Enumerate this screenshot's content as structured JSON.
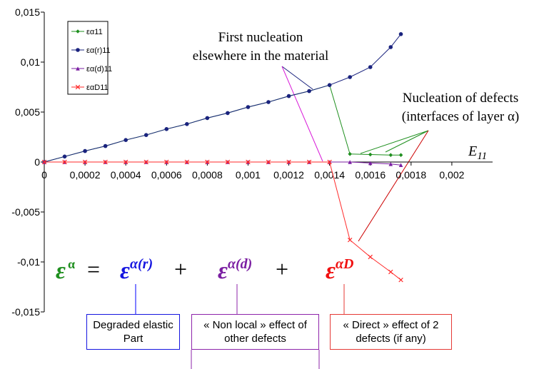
{
  "chart_data": {
    "type": "line",
    "x": [
      0,
      0.0001,
      0.0002,
      0.0003,
      0.0004,
      0.0005,
      0.0006,
      0.0007,
      0.0008,
      0.0009,
      0.001,
      0.0011,
      0.0012,
      0.0013,
      0.0014,
      0.0015,
      0.0016,
      0.0017,
      0.00175
    ],
    "series": [
      {
        "name": "εα11",
        "color": "#1f8f1f",
        "marker": "diamond",
        "values": [
          0,
          0.00055,
          0.0011,
          0.0016,
          0.0022,
          0.0027,
          0.0033,
          0.0038,
          0.0044,
          0.0049,
          0.0055,
          0.006,
          0.0066,
          0.0071,
          0.0077,
          0.0008,
          0.00075,
          0.0007,
          0.0007
        ]
      },
      {
        "name": "εα(r)11",
        "color": "#1a237e",
        "marker": "circle",
        "values": [
          0,
          0.00055,
          0.0011,
          0.0016,
          0.0022,
          0.0027,
          0.0033,
          0.0038,
          0.0044,
          0.0049,
          0.0055,
          0.006,
          0.0066,
          0.0071,
          0.0077,
          0.0085,
          0.0095,
          0.0115,
          0.0128
        ]
      },
      {
        "name": "εα(d)11",
        "color": "#7b1fa2",
        "marker": "triangle",
        "values": [
          0,
          0,
          0,
          0,
          0,
          0,
          0,
          0,
          0,
          0,
          0,
          0,
          0,
          0,
          0,
          0,
          -0.0001,
          -0.0002,
          -0.0003
        ]
      },
      {
        "name": "εαD11",
        "color": "#ff2a2a",
        "marker": "x",
        "values": [
          0,
          0,
          0,
          0,
          0,
          0,
          0,
          0,
          0,
          0,
          0,
          0,
          0,
          0,
          0,
          -0.0078,
          -0.0095,
          -0.011,
          -0.0118
        ]
      }
    ],
    "xlim": [
      0,
      0.0022
    ],
    "ylim": [
      -0.015,
      0.015
    ],
    "xticks": [
      0,
      {
        "value": 0.0002,
        "label": "0,0002"
      },
      {
        "value": 0.0004,
        "label": "0,0004"
      },
      {
        "value": 0.0006,
        "label": "0,0006"
      },
      {
        "value": 0.0008,
        "label": "0,0008"
      },
      {
        "value": 0.001,
        "label": "0,001"
      },
      {
        "value": 0.0012,
        "label": "0,0012"
      },
      {
        "value": 0.0014,
        "label": "0,0014"
      },
      {
        "value": 0.0016,
        "label": "0,0016"
      },
      {
        "value": 0.0018,
        "label": "0,0018"
      },
      {
        "value": 0.002,
        "label": "0,002"
      }
    ],
    "yticks": [
      {
        "value": 0.015,
        "label": "0,015"
      },
      {
        "value": 0.01,
        "label": "0,01"
      },
      {
        "value": 0.005,
        "label": "0,005"
      },
      0,
      {
        "value": -0.005,
        "label": "-0,005"
      },
      {
        "value": -0.01,
        "label": "-0,01"
      },
      {
        "value": -0.015,
        "label": "-0,015"
      }
    ],
    "x_label": {
      "main": "E",
      "sub": "11"
    },
    "legend": "top-left",
    "annotations": [
      {
        "lines": [
          "First nucleation",
          "elsewhere in the material"
        ]
      },
      {
        "lines": [
          "Nucleation of defects",
          "(interfaces of layer α)"
        ]
      }
    ],
    "equation": {
      "symbol": "ε",
      "lhs_sup": "α",
      "equals": "=",
      "plus": "+",
      "terms": [
        {
          "sup": "α(r)",
          "box": "Degraded elastic Part"
        },
        {
          "sup": "α(d)",
          "box": "« Non local »  effect of other defects"
        },
        {
          "sup": "αD",
          "box": "« Direct » effect of 2 defects (if any)"
        }
      ]
    }
  }
}
